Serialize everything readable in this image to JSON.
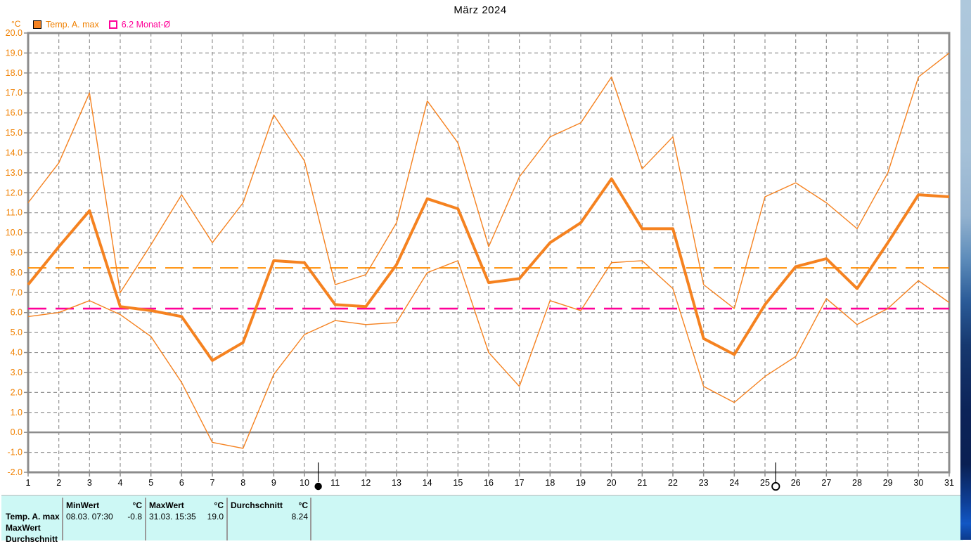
{
  "title": "März 2024",
  "unit_label": "°C",
  "legend": [
    {
      "label": "Temp. A. max",
      "marker": "filled-square",
      "color": "#f58220"
    },
    {
      "label": "6.2 Monat-Ø",
      "marker": "open-square",
      "color": "#ff0098"
    }
  ],
  "chart_data": {
    "type": "line",
    "title": "März 2024",
    "ylabel": "°C",
    "ylim": [
      -2.0,
      20.0
    ],
    "ytick_step": 1.0,
    "grid": "dashed-gray",
    "x": [
      1,
      2,
      3,
      4,
      5,
      6,
      7,
      8,
      9,
      10,
      11,
      12,
      13,
      14,
      15,
      16,
      17,
      18,
      19,
      20,
      21,
      22,
      23,
      24,
      25,
      26,
      27,
      28,
      29,
      30,
      31
    ],
    "x_labels": [
      "1",
      "2",
      "3",
      "4",
      "5",
      "6",
      "7",
      "8",
      "9",
      "10",
      "11",
      "12",
      "13",
      "14",
      "15",
      "16",
      "17",
      "18",
      "19",
      "20",
      "21",
      "22",
      "23",
      "24",
      "25",
      "26",
      "27",
      "28",
      "29",
      "30",
      "31"
    ],
    "series": [
      {
        "name": "daily-max",
        "style": "thin",
        "color": "#f58220",
        "values": [
          11.5,
          13.5,
          17.0,
          7.0,
          9.4,
          11.9,
          9.5,
          11.5,
          15.9,
          13.6,
          7.4,
          7.9,
          10.5,
          16.6,
          14.5,
          9.3,
          12.8,
          14.8,
          15.5,
          17.8,
          13.2,
          14.8,
          7.4,
          6.2,
          11.8,
          12.5,
          11.5,
          10.2,
          13.0,
          17.8,
          19.0
        ]
      },
      {
        "name": "Temp. A. max",
        "style": "thick",
        "color": "#f58220",
        "values": [
          7.4,
          9.3,
          11.1,
          6.3,
          6.1,
          5.8,
          3.6,
          4.5,
          8.6,
          8.5,
          6.4,
          6.3,
          8.4,
          11.7,
          11.2,
          7.5,
          7.7,
          9.5,
          10.5,
          12.7,
          10.2,
          10.2,
          4.7,
          3.9,
          6.4,
          8.3,
          8.7,
          7.2,
          9.5,
          11.9,
          11.8
        ]
      },
      {
        "name": "daily-min",
        "style": "thin",
        "color": "#f58220",
        "values": [
          5.8,
          6.0,
          6.6,
          5.9,
          4.8,
          2.5,
          -0.5,
          -0.8,
          2.9,
          4.9,
          5.6,
          5.4,
          5.5,
          8.0,
          8.6,
          4.0,
          2.3,
          6.6,
          6.1,
          8.5,
          8.6,
          7.2,
          2.3,
          1.5,
          2.8,
          3.8,
          6.7,
          5.4,
          6.2,
          7.6,
          6.5
        ]
      }
    ],
    "reference_lines": [
      {
        "name": "monthly-average",
        "value": 8.24,
        "color": "#ff8c00",
        "style": "long-dash"
      },
      {
        "name": "6.2 Monat-Ø",
        "value": 6.2,
        "color": "#ff0098",
        "style": "long-dash"
      }
    ],
    "moon_markers": [
      {
        "name": "new-moon",
        "day": 10.45,
        "type": "filled-circle"
      },
      {
        "name": "full-moon",
        "day": 25.35,
        "type": "open-circle"
      }
    ],
    "legend_position": "top-left"
  },
  "stats_table": {
    "row_labels": [
      "Temp. A. max",
      "MaxWert",
      "Durchschnitt"
    ],
    "columns": [
      {
        "header": "MinWert",
        "unit": "°C",
        "value_datetime": "08.03.  07:30",
        "value": "-0.8"
      },
      {
        "header": "MaxWert",
        "unit": "°C",
        "value_datetime": "31.03.  15:35",
        "value": "19.0"
      },
      {
        "header": "Durchschnitt",
        "unit": "°C",
        "value_datetime": "",
        "value": "8.24"
      }
    ]
  },
  "colors": {
    "series_orange": "#f58220",
    "avg_line_orange": "#ff8c00",
    "monat_magenta": "#ff0098",
    "grid_gray": "#949494",
    "frame_gray": "#8c8c8c",
    "axis_label_orange": "#f08000",
    "table_bg": "#cdf8f5"
  }
}
